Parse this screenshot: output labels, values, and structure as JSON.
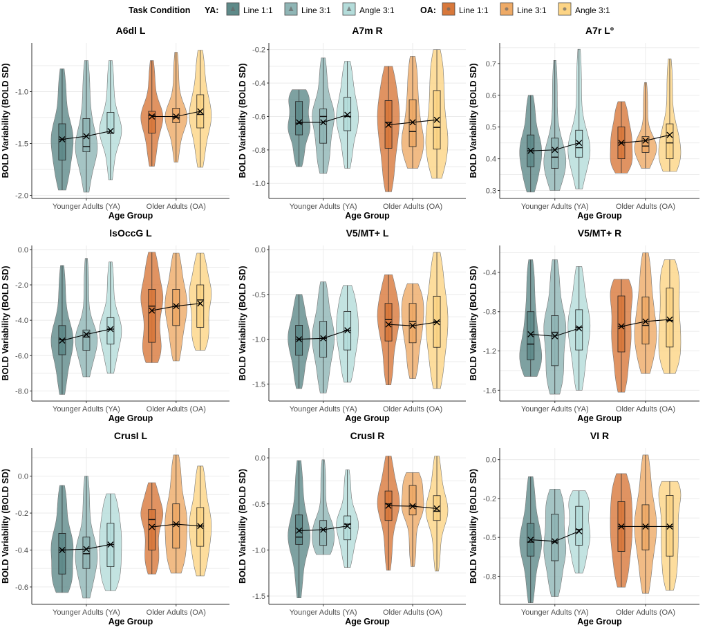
{
  "legend": {
    "title": "Task Condition",
    "groups": [
      {
        "label": "YA:",
        "items": [
          {
            "label": "Line 1:1",
            "color": "#5e8a89",
            "marker": "triangle"
          },
          {
            "label": "Line 3:1",
            "color": "#8fb5b5",
            "marker": "triangle"
          },
          {
            "label": "Angle 3:1",
            "color": "#b4dcda",
            "marker": "triangle"
          }
        ]
      },
      {
        "label": "OA:",
        "items": [
          {
            "label": "Line 1:1",
            "color": "#d8783b",
            "marker": "circle"
          },
          {
            "label": "Line 3:1",
            "color": "#eeaa66",
            "marker": "circle"
          },
          {
            "label": "Angle 3:1",
            "color": "#fcd485",
            "marker": "circle"
          }
        ]
      }
    ]
  },
  "chart_data": [
    {
      "type": "violin",
      "title": "A6dl L",
      "xlabel": "Age Group",
      "ylabel": "BOLD Variability (BOLD SD)",
      "categories": [
        "Younger Adults (YA)",
        "Older Adults (OA)"
      ],
      "ylim": [
        -2.03,
        -0.53
      ],
      "yticks": [
        -2.0,
        -1.5,
        -1.0
      ],
      "ytick_labels": [
        "-2.0",
        "-1.5",
        "-1.0"
      ],
      "groups": [
        [
          [
            -1.95,
            -1.66,
            -1.46,
            -1.31,
            -0.78,
            -1.46
          ],
          [
            -1.97,
            -1.58,
            -1.53,
            -1.26,
            -0.7,
            -1.43
          ],
          [
            -1.85,
            -1.4,
            -1.4,
            -1.2,
            -0.7,
            -1.38
          ]
        ],
        [
          [
            -1.72,
            -1.4,
            -1.23,
            -1.19,
            -0.7,
            -1.24
          ],
          [
            -1.68,
            -1.3,
            -1.25,
            -1.16,
            -0.62,
            -1.24
          ],
          [
            -1.73,
            -1.35,
            -1.22,
            -1.03,
            -0.6,
            -1.19
          ]
        ]
      ]
    },
    {
      "type": "violin",
      "title": "A7m R",
      "xlabel": "Age Group",
      "ylabel": "BOLD Variability (BOLD SD)",
      "categories": [
        "Younger Adults (YA)",
        "Older Adults (OA)"
      ],
      "ylim": [
        -1.09,
        -0.16
      ],
      "yticks": [
        -1.0,
        -0.8,
        -0.6,
        -0.4,
        -0.2
      ],
      "ytick_labels": [
        "-1.0",
        "-0.8",
        "-0.6",
        "-0.4",
        "-0.2"
      ],
      "groups": [
        [
          [
            -0.9,
            -0.71,
            -0.64,
            -0.51,
            -0.44,
            -0.635
          ],
          [
            -0.94,
            -0.76,
            -0.6,
            -0.555,
            -0.25,
            -0.635
          ],
          [
            -0.91,
            -0.685,
            -0.6,
            -0.485,
            -0.27,
            -0.59
          ]
        ],
        [
          [
            -1.05,
            -0.79,
            -0.635,
            -0.505,
            -0.3,
            -0.65
          ],
          [
            -0.91,
            -0.78,
            -0.69,
            -0.5,
            -0.24,
            -0.635
          ],
          [
            -0.97,
            -0.795,
            -0.665,
            -0.445,
            -0.2,
            -0.62
          ]
        ]
      ]
    },
    {
      "type": "violin",
      "title": "A7r Lº",
      "xlabel": "Age Group",
      "ylabel": "BOLD Variability (BOLD SD)",
      "categories": [
        "Younger Adults (YA)",
        "Older Adults (OA)"
      ],
      "ylim": [
        0.275,
        0.765
      ],
      "yticks": [
        0.3,
        0.4,
        0.5,
        0.6,
        0.7
      ],
      "ytick_labels": [
        "0.3",
        "0.4",
        "0.5",
        "0.6",
        "0.7"
      ],
      "groups": [
        [
          [
            0.295,
            0.375,
            0.425,
            0.475,
            0.6,
            0.425
          ],
          [
            0.3,
            0.37,
            0.405,
            0.465,
            0.71,
            0.428
          ],
          [
            0.305,
            0.405,
            0.435,
            0.49,
            0.745,
            0.45
          ]
        ],
        [
          [
            0.355,
            0.4,
            0.45,
            0.5,
            0.58,
            0.45
          ],
          [
            0.37,
            0.42,
            0.44,
            0.47,
            0.64,
            0.457
          ],
          [
            0.36,
            0.4,
            0.45,
            0.51,
            0.715,
            0.475
          ]
        ]
      ]
    },
    {
      "type": "violin",
      "title": "lsOccG L",
      "xlabel": "Age Group",
      "ylabel": "BOLD Variability (BOLD SD)",
      "categories": [
        "Younger Adults (YA)",
        "Older Adults (OA)"
      ],
      "ylim": [
        -8.57,
        0.23
      ],
      "yticks": [
        -8,
        -6,
        -4,
        -2,
        0
      ],
      "ytick_labels": [
        "-8.0",
        "-6.0",
        "-4.0",
        "-2.0",
        "0.0"
      ],
      "groups": [
        [
          [
            -8.2,
            -5.95,
            -5.1,
            -4.3,
            -0.9,
            -5.15
          ],
          [
            -7.2,
            -5.7,
            -4.95,
            -4.55,
            -0.5,
            -4.8
          ],
          [
            -7.0,
            -5.35,
            -4.5,
            -3.85,
            -0.7,
            -4.5
          ]
        ],
        [
          [
            -6.4,
            -5.25,
            -3.2,
            -2.25,
            -0.15,
            -3.45
          ],
          [
            -6.3,
            -4.3,
            -3.2,
            -2.25,
            -0.2,
            -3.2
          ],
          [
            -5.7,
            -4.4,
            -2.85,
            -2.0,
            -0.2,
            -3.05
          ]
        ]
      ]
    },
    {
      "type": "violin",
      "title": "V5/MT+ L",
      "xlabel": "Age Group",
      "ylabel": "BOLD Variability (BOLD SD)",
      "categories": [
        "Younger Adults (YA)",
        "Older Adults (OA)"
      ],
      "ylim": [
        -1.69,
        0.046
      ],
      "yticks": [
        -1.5,
        -1.0,
        -0.5,
        0.0
      ],
      "ytick_labels": [
        "-1.5",
        "-1.0",
        "-0.5",
        "0.0"
      ],
      "groups": [
        [
          [
            -1.55,
            -1.18,
            -1.0,
            -0.845,
            -0.5,
            -1.0
          ],
          [
            -1.6,
            -1.2,
            -0.99,
            -0.8,
            -0.36,
            -0.99
          ],
          [
            -1.48,
            -1.12,
            -0.9,
            -0.69,
            -0.4,
            -0.9
          ]
        ],
        [
          [
            -1.51,
            -1.02,
            -0.78,
            -0.6,
            -0.28,
            -0.835
          ],
          [
            -1.44,
            -1.04,
            -0.8,
            -0.6,
            -0.38,
            -0.85
          ],
          [
            -1.55,
            -1.09,
            -0.8,
            -0.52,
            -0.03,
            -0.81
          ]
        ]
      ]
    },
    {
      "type": "violin",
      "title": "V5/MT+ R",
      "xlabel": "Age Group",
      "ylabel": "BOLD Variability (BOLD SD)",
      "categories": [
        "Younger Adults (YA)",
        "Older Adults (OA)"
      ],
      "ylim": [
        -1.71,
        -0.126
      ],
      "yticks": [
        -1.6,
        -1.2,
        -0.8,
        -0.4
      ],
      "ytick_labels": [
        "-1.6",
        "-1.2",
        "-0.8",
        "-0.4"
      ],
      "groups": [
        [
          [
            -1.46,
            -1.29,
            -1.13,
            -0.8,
            -0.27,
            -1.03
          ],
          [
            -1.64,
            -1.35,
            -1.01,
            -0.84,
            -0.27,
            -1.05
          ],
          [
            -1.6,
            -1.19,
            -0.96,
            -0.78,
            -0.34,
            -0.97
          ]
        ],
        [
          [
            -1.62,
            -1.21,
            -0.95,
            -0.64,
            -0.47,
            -0.95
          ],
          [
            -1.43,
            -1.13,
            -0.94,
            -0.65,
            -0.2,
            -0.9
          ],
          [
            -1.43,
            -1.16,
            -0.89,
            -0.56,
            -0.27,
            -0.88
          ]
        ]
      ]
    },
    {
      "type": "violin",
      "title": "CrusI L",
      "xlabel": "Age Group",
      "ylabel": "BOLD Variability (BOLD SD)",
      "categories": [
        "Younger Adults (YA)",
        "Older Adults (OA)"
      ],
      "ylim": [
        -0.694,
        0.152
      ],
      "yticks": [
        -0.6,
        -0.4,
        -0.2,
        0.0
      ],
      "ytick_labels": [
        "-0.6",
        "-0.4",
        "-0.2",
        "0.0"
      ],
      "groups": [
        [
          [
            -0.63,
            -0.53,
            -0.4,
            -0.31,
            -0.05,
            -0.4
          ],
          [
            -0.66,
            -0.5,
            -0.42,
            -0.33,
            0.0,
            -0.395
          ],
          [
            -0.62,
            -0.49,
            -0.37,
            -0.255,
            -0.095,
            -0.37
          ]
        ],
        [
          [
            -0.53,
            -0.4,
            -0.235,
            -0.18,
            -0.035,
            -0.275
          ],
          [
            -0.525,
            -0.39,
            -0.26,
            -0.15,
            0.115,
            -0.26
          ],
          [
            -0.54,
            -0.38,
            -0.27,
            -0.17,
            0.055,
            -0.27
          ]
        ]
      ]
    },
    {
      "type": "violin",
      "title": "CrusI R",
      "xlabel": "Age Group",
      "ylabel": "BOLD Variability (BOLD SD)",
      "categories": [
        "Younger Adults (YA)",
        "Older Adults (OA)"
      ],
      "ylim": [
        -1.59,
        0.106
      ],
      "yticks": [
        -1.5,
        -1.0,
        -0.5,
        0.0
      ],
      "ytick_labels": [
        "-1.5",
        "-1.0",
        "-0.5",
        "0.0"
      ],
      "groups": [
        [
          [
            -1.52,
            -0.94,
            -0.86,
            -0.62,
            -0.03,
            -0.79
          ],
          [
            -1.05,
            -0.95,
            -0.78,
            -0.68,
            -0.02,
            -0.78
          ],
          [
            -1.19,
            -0.89,
            -0.72,
            -0.63,
            -0.13,
            -0.74
          ]
        ],
        [
          [
            -1.22,
            -0.68,
            -0.5,
            -0.36,
            0.02,
            -0.52
          ],
          [
            -1.18,
            -0.62,
            -0.52,
            -0.3,
            -0.16,
            -0.525
          ],
          [
            -1.23,
            -0.68,
            -0.58,
            -0.41,
            0.02,
            -0.55
          ]
        ]
      ]
    },
    {
      "type": "violin",
      "title": "VI R",
      "xlabel": "Age Group",
      "ylabel": "BOLD Variability (BOLD SD)",
      "categories": [
        "Younger Adults (YA)",
        "Older Adults (OA)"
      ],
      "ylim": [
        -0.93,
        0.074
      ],
      "yticks": [
        -0.75,
        -0.5,
        -0.25,
        0.0
      ],
      "ytick_labels": [
        "-0.8",
        "-0.5",
        "-0.2",
        "0.0"
      ],
      "groups": [
        [
          [
            -0.92,
            -0.62,
            -0.53,
            -0.41,
            -0.11,
            -0.515
          ],
          [
            -0.88,
            -0.65,
            -0.53,
            -0.35,
            -0.19,
            -0.525
          ],
          [
            -0.73,
            -0.55,
            -0.45,
            -0.3,
            -0.2,
            -0.46
          ]
        ],
        [
          [
            -0.82,
            -0.59,
            -0.43,
            -0.27,
            -0.09,
            -0.43
          ],
          [
            -0.86,
            -0.58,
            -0.43,
            -0.29,
            0.03,
            -0.43
          ],
          [
            -0.84,
            -0.62,
            -0.43,
            -0.23,
            -0.14,
            -0.43
          ]
        ]
      ]
    }
  ]
}
